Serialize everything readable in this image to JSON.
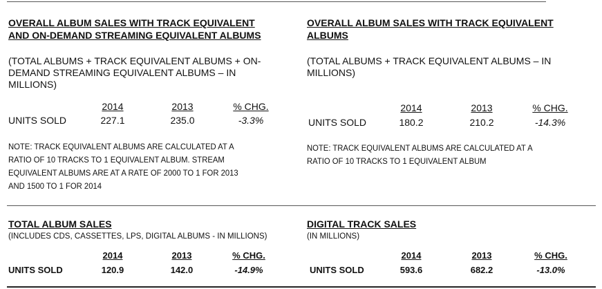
{
  "panels": [
    {
      "title": [
        "OVERALL ALBUM SALES WITH TRACK EQUIVALENT",
        "AND ON-DEMAND STREAMING EQUIVALENT ALBUMS"
      ],
      "subtitle": [
        "(TOTAL ALBUMS + TRACK EQUIVALENT ALBUMS  + ON-",
        "DEMAND STREAMING EQUIVALENT ALBUMS – IN",
        "MILLIONS)"
      ],
      "columns": [
        "2014",
        "2013",
        "% CHG."
      ],
      "row_label": "UNITS SOLD",
      "values": [
        "227.1",
        "235.0",
        "-3.3%"
      ],
      "note": [
        "NOTE: TRACK EQUIVALENT ALBUMS ARE CALCULATED AT A",
        "RATIO OF 10 TRACKS TO 1 EQUIVALENT ALBUM.  STREAM",
        "EQUIVALENT ALBUMS ARE AT A RATE OF 2000 TO 1 FOR 2013",
        "AND 1500 TO 1 FOR 2014"
      ]
    },
    {
      "title": [
        "OVERALL ALBUM SALES WITH TRACK EQUIVALENT",
        "ALBUMS"
      ],
      "subtitle": [
        "(TOTAL ALBUMS + TRACK EQUIVALENT ALBUMS – IN",
        "MILLIONS)"
      ],
      "columns": [
        "2014",
        "2013",
        "% CHG."
      ],
      "row_label": "UNITS SOLD",
      "values": [
        "180.2",
        "210.2",
        "-14.3%"
      ],
      "note": [
        "NOTE: TRACK EQUIVALENT ALBUMS ARE CALCULATED AT A",
        "RATIO OF 10 TRACKS TO 1 EQUIVALENT ALBUM"
      ]
    },
    {
      "title": [
        "TOTAL ALBUM SALES"
      ],
      "subtitle": [
        "(INCLUDES CDS, CASSETTES, LPS, DIGITAL ALBUMS - IN MILLIONS)"
      ],
      "columns": [
        "2014",
        "2013",
        "% CHG."
      ],
      "row_label": "UNITS SOLD",
      "values": [
        "120.9",
        "142.0",
        "-14.9%"
      ]
    },
    {
      "title": [
        "DIGITAL TRACK SALES"
      ],
      "subtitle": [
        "(IN MILLIONS)"
      ],
      "columns": [
        "2014",
        "2013",
        "% CHG."
      ],
      "row_label": "UNITS SOLD",
      "values": [
        "593.6",
        "682.2",
        "-13.0%"
      ]
    }
  ]
}
